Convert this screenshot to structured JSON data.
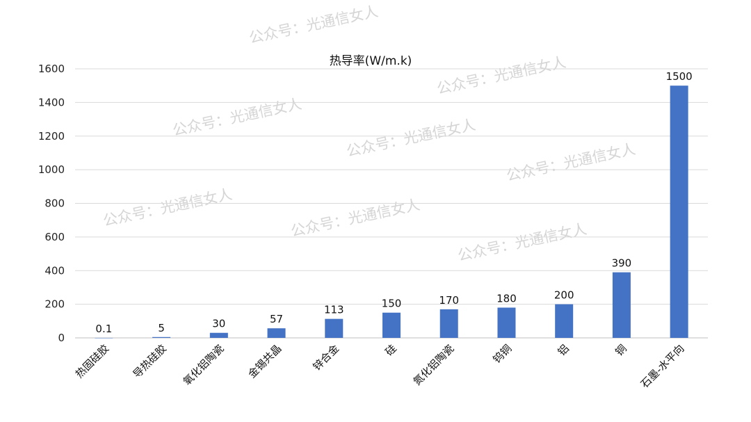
{
  "watermark": "公众号：光通信女人",
  "chart_data": {
    "type": "bar",
    "title": "热导率(W/m.k)",
    "xlabel": "",
    "ylabel": "",
    "categories": [
      "热固硅胶",
      "导热硅胶",
      "氧化铝陶瓷",
      "金锡共晶",
      "锌合金",
      "硅",
      "氮化铝陶瓷",
      "钨铜",
      "铝",
      "铜",
      "石墨-水平向"
    ],
    "values": [
      0.1,
      5,
      30,
      57,
      113,
      150,
      170,
      180,
      200,
      390,
      1500
    ],
    "data_labels": [
      "0.1",
      "5",
      "30",
      "57",
      "113",
      "150",
      "170",
      "180",
      "200",
      "390",
      "1500"
    ],
    "ylim": [
      0,
      1600
    ],
    "yticks": [
      0,
      200,
      400,
      600,
      800,
      1000,
      1200,
      1400,
      1600
    ],
    "grid": true,
    "legend": "none",
    "bar_color": "#4472C4",
    "grid_color": "#d9d9d9"
  }
}
